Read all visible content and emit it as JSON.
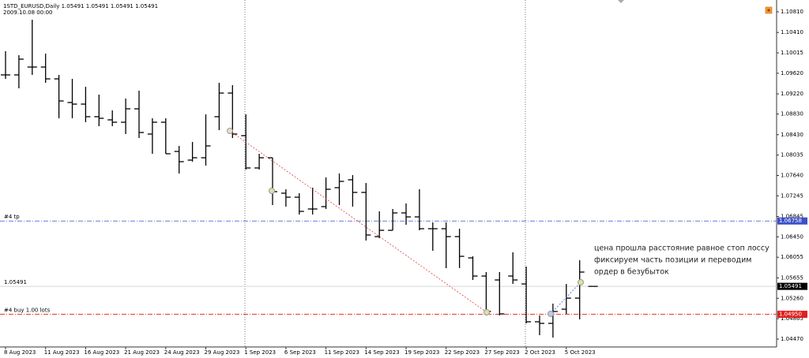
{
  "chart_data": {
    "type": "ohlc",
    "header": "1STD_EURUSD,Daily  1.05491 1.05491 1.05491 1.05491",
    "subheader": "2009.10.08 00:00",
    "categories": [
      "8 Aug 2023",
      null,
      null,
      "11 Aug 2023",
      null,
      null,
      "16 Aug 2023",
      null,
      null,
      "21 Aug 2023",
      null,
      null,
      "24 Aug 2023",
      null,
      null,
      "29 Aug 2023",
      null,
      null,
      "1 Sep 2023",
      null,
      null,
      "6 Sep 2023",
      null,
      null,
      "11 Sep 2023",
      null,
      null,
      "14 Sep 2023",
      null,
      null,
      "19 Sep 2023",
      null,
      null,
      "22 Sep 2023",
      null,
      null,
      "27 Sep 2023",
      null,
      null,
      "2 Oct 2023",
      null,
      null,
      "5 Oct 2023",
      null,
      null
    ],
    "open": [
      1.09588,
      1.09588,
      1.0974,
      1.0974,
      1.09511,
      1.09053,
      1.09022,
      1.08778,
      1.08717,
      1.08671,
      1.08931,
      1.08442,
      1.08671,
      1.08105,
      1.07937,
      1.07983,
      1.08778,
      1.09236,
      1.08411,
      1.07785,
      1.07983,
      1.07296,
      1.07219,
      1.0699,
      1.07036,
      1.07403,
      1.07556,
      1.07311,
      1.06455,
      1.06577,
      1.06914,
      1.06837,
      1.06608,
      1.06608,
      1.06455,
      1.06043,
      1.05691,
      1.05615,
      1.05691,
      1.05538,
      1.04805,
      1.04774,
      1.05049,
      1.05263,
      1.05491
    ],
    "high": [
      1.10046,
      1.0997,
      1.10657,
      1.1,
      1.09588,
      1.09511,
      1.09358,
      1.09206,
      1.089,
      1.09129,
      1.09282,
      1.08747,
      1.08747,
      1.08212,
      1.08289,
      1.08824,
      1.09435,
      1.09389,
      1.08824,
      1.0806,
      1.07983,
      1.07372,
      1.07296,
      1.07403,
      1.07601,
      1.07678,
      1.07647,
      1.07494,
      1.06944,
      1.0699,
      1.07097,
      1.07372,
      1.0673,
      1.0673,
      1.06608,
      1.06073,
      1.05768,
      1.05768,
      1.0615,
      1.05874,
      1.04927,
      1.05156,
      1.05538,
      1.05997,
      1.05491
    ],
    "low": [
      1.09511,
      1.09328,
      1.09588,
      1.09435,
      1.08747,
      1.08747,
      1.08671,
      1.08594,
      1.08594,
      1.08442,
      1.08365,
      1.0806,
      1.0806,
      1.07678,
      1.07907,
      1.0783,
      1.08518,
      1.08365,
      1.07754,
      1.07754,
      1.07066,
      1.07036,
      1.06883,
      1.06883,
      1.0699,
      1.07066,
      1.07036,
      1.06379,
      1.06425,
      1.06577,
      1.06684,
      1.06577,
      1.0618,
      1.05844,
      1.05844,
      1.05615,
      1.04927,
      1.04927,
      1.05538,
      1.04774,
      1.04545,
      1.04499,
      1.04958,
      1.04851,
      1.05491
    ],
    "close": [
      1.09588,
      1.09893,
      1.0974,
      1.09511,
      1.09083,
      1.09022,
      1.08778,
      1.08747,
      1.08671,
      1.08931,
      1.08472,
      1.08671,
      1.0806,
      1.07907,
      1.07983,
      1.08212,
      1.09236,
      1.08442,
      1.07785,
      1.07983,
      1.07326,
      1.07219,
      1.06944,
      1.0699,
      1.07372,
      1.07525,
      1.07311,
      1.06486,
      1.06577,
      1.06914,
      1.06837,
      1.06608,
      1.06608,
      1.06455,
      1.06073,
      1.05691,
      1.05004,
      1.04958,
      1.05615,
      1.04805,
      1.04774,
      1.05004,
      1.05263,
      1.05768,
      1.05491
    ],
    "color": "#000000",
    "ylim": [
      1.04317,
      1.11039
    ],
    "yticks": [
      {
        "value": 1.1081,
        "label": "1.10810"
      },
      {
        "value": 1.1041,
        "label": "1.10410"
      },
      1.10015,
      {
        "value": 1.0962,
        "label": "1.09620"
      },
      {
        "value": 1.0922,
        "label": "1.09220"
      },
      {
        "value": 1.0883,
        "label": "1.08830"
      },
      {
        "value": 1.0843,
        "label": "1.08430"
      },
      1.08035,
      {
        "value": 1.0764,
        "label": "1.07640"
      },
      1.07245,
      1.06845,
      {
        "value": 1.0645,
        "label": "1.06450"
      },
      1.06055,
      1.05655,
      {
        "value": 1.0526,
        "label": "1.05260"
      },
      1.04865,
      {
        "value": 1.0447,
        "label": "1.04470"
      }
    ],
    "levels": [
      {
        "name": "#4 tp",
        "value": 1.06758,
        "color": "#3c50c8"
      },
      {
        "name": "#4 buy 1.00 lots",
        "value": 1.0495,
        "value_label": "1.04950",
        "color": "#e02020"
      }
    ],
    "current_price": {
      "value": 1.05491,
      "color": "#000000"
    },
    "annotation": [
      "цена прошла расстояние равное стоп лоссу",
      "фиксируем часть позиции и переводим",
      "ордер в безубыток"
    ]
  }
}
